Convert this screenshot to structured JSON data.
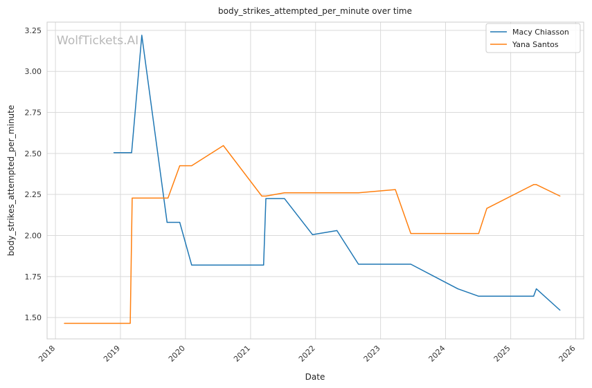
{
  "chart_data": {
    "type": "line",
    "title": "body_strikes_attempted_per_minute over time",
    "xlabel": "Date",
    "ylabel": "body_strikes_attempted_per_minute",
    "watermark": "WolfTickets.AI",
    "xlim": [
      "2017-11-15",
      "2026-02-15"
    ],
    "ylim": [
      1.37,
      3.3
    ],
    "x_ticks": [
      "2018",
      "2019",
      "2020",
      "2021",
      "2022",
      "2023",
      "2024",
      "2025",
      "2026"
    ],
    "y_ticks": [
      "1.50",
      "1.75",
      "2.00",
      "2.25",
      "2.50",
      "2.75",
      "3.00",
      "3.25"
    ],
    "grid": true,
    "legend_position": "top-right",
    "series": [
      {
        "name": "Macy Chiasson",
        "color": "#1f77b4",
        "points": [
          [
            "2018-11-25",
            2.505
          ],
          [
            "2019-03-05",
            2.505
          ],
          [
            "2019-05-01",
            3.22
          ],
          [
            "2019-09-20",
            2.08
          ],
          [
            "2019-11-30",
            2.08
          ],
          [
            "2020-02-05",
            1.82
          ],
          [
            "2021-03-15",
            1.82
          ],
          [
            "2021-03-28",
            2.225
          ],
          [
            "2021-07-10",
            2.225
          ],
          [
            "2021-12-15",
            2.005
          ],
          [
            "2022-05-01",
            2.03
          ],
          [
            "2022-08-30",
            1.825
          ],
          [
            "2023-06-20",
            1.825
          ],
          [
            "2024-03-10",
            1.675
          ],
          [
            "2024-07-05",
            1.63
          ],
          [
            "2025-05-10",
            1.63
          ],
          [
            "2025-05-25",
            1.675
          ],
          [
            "2025-10-05",
            1.545
          ]
        ]
      },
      {
        "name": "Yana Santos",
        "color": "#ff7f0e",
        "points": [
          [
            "2018-02-20",
            1.465
          ],
          [
            "2019-02-25",
            1.465
          ],
          [
            "2019-03-08",
            2.228
          ],
          [
            "2019-09-25",
            2.228
          ],
          [
            "2019-11-30",
            2.425
          ],
          [
            "2020-02-05",
            2.425
          ],
          [
            "2020-08-01",
            2.548
          ],
          [
            "2021-03-05",
            2.24
          ],
          [
            "2021-03-28",
            2.24
          ],
          [
            "2021-07-10",
            2.26
          ],
          [
            "2022-08-30",
            2.26
          ],
          [
            "2023-03-25",
            2.28
          ],
          [
            "2023-06-20",
            2.012
          ],
          [
            "2024-07-05",
            2.012
          ],
          [
            "2024-08-20",
            2.165
          ],
          [
            "2025-05-10",
            2.31
          ],
          [
            "2025-05-25",
            2.31
          ],
          [
            "2025-10-05",
            2.24
          ]
        ]
      }
    ]
  }
}
